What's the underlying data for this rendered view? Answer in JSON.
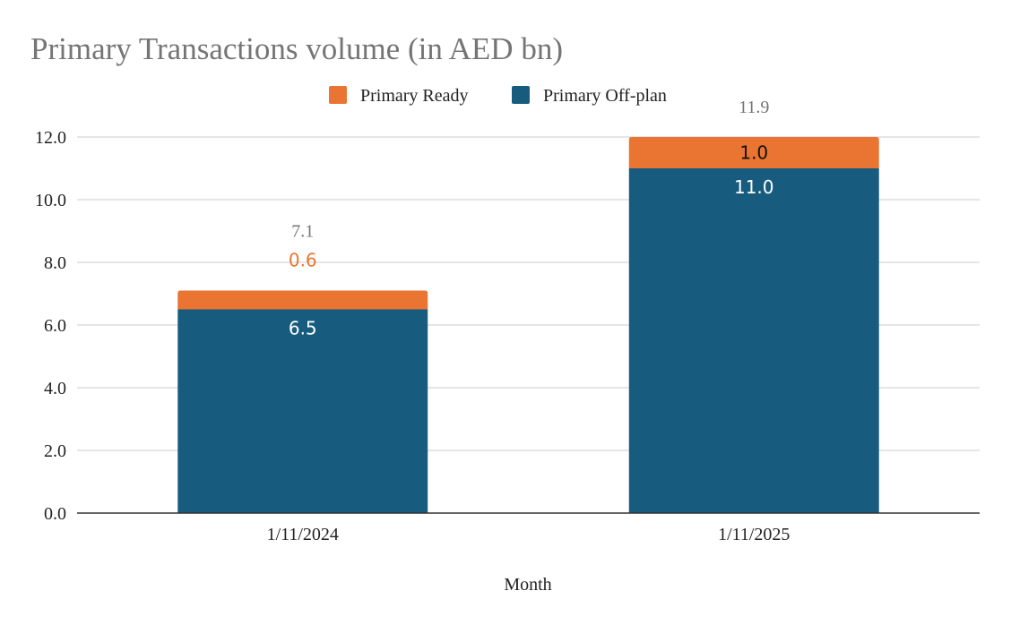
{
  "chart_data": {
    "type": "bar",
    "stacked": true,
    "title": "Primary Transactions volume (in AED bn)",
    "xlabel": "Month",
    "ylabel": "",
    "categories": [
      "1/11/2024",
      "1/11/2025"
    ],
    "series": [
      {
        "name": "Primary Off-plan",
        "values": [
          6.5,
          11.0
        ],
        "labels": [
          "6.5",
          "11.0"
        ],
        "color": "#175c7e",
        "label_color": "#ffffff"
      },
      {
        "name": "Primary Ready",
        "values": [
          0.6,
          1.0
        ],
        "labels": [
          "0.6",
          "1.0"
        ],
        "color": "#ea7431",
        "label_colors": [
          "#ea7431",
          "#111111"
        ]
      }
    ],
    "totals": [
      "7.1",
      "11.9"
    ],
    "legend_order": [
      "Primary Ready",
      "Primary Off-plan"
    ],
    "legend_position": "top",
    "ylim": [
      0,
      12
    ],
    "yticks": [
      "0.0",
      "2.0",
      "4.0",
      "6.0",
      "8.0",
      "10.0",
      "12.0"
    ],
    "grid": true
  }
}
